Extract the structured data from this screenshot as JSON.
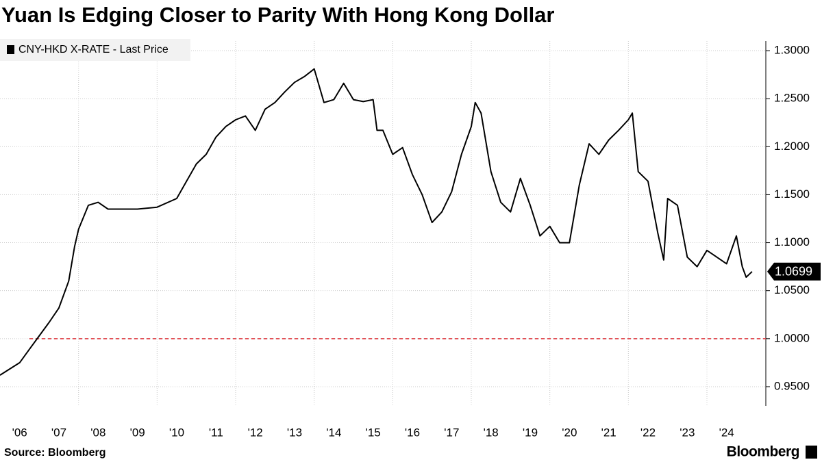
{
  "chart_data": {
    "type": "line",
    "title": "Yuan Is Edging Closer to Parity With Hong Kong Dollar",
    "source": "Source: Bloomberg",
    "brand": "Bloomberg",
    "legend_position": "top-left",
    "grid": true,
    "reference_line": {
      "value": 1.0,
      "color": "#e0383e"
    },
    "x": [
      2006.0,
      2006.5,
      2006.75,
      2007.0,
      2007.25,
      2007.5,
      2007.75,
      2007.9,
      2008.0,
      2008.25,
      2008.5,
      2008.75,
      2009.0,
      2009.5,
      2010.0,
      2010.5,
      2010.75,
      2011.0,
      2011.25,
      2011.5,
      2011.75,
      2012.0,
      2012.25,
      2012.5,
      2012.75,
      2013.0,
      2013.25,
      2013.5,
      2013.75,
      2014.0,
      2014.25,
      2014.5,
      2014.75,
      2015.0,
      2015.25,
      2015.5,
      2015.6,
      2015.75,
      2016.0,
      2016.25,
      2016.5,
      2016.75,
      2017.0,
      2017.25,
      2017.5,
      2017.75,
      2018.0,
      2018.1,
      2018.25,
      2018.5,
      2018.75,
      2019.0,
      2019.25,
      2019.5,
      2019.75,
      2020.0,
      2020.25,
      2020.5,
      2020.75,
      2021.0,
      2021.25,
      2021.5,
      2021.75,
      2022.0,
      2022.1,
      2022.25,
      2022.5,
      2022.75,
      2022.9,
      2023.0,
      2023.25,
      2023.5,
      2023.75,
      2024.0,
      2024.25,
      2024.5,
      2024.75,
      2024.9,
      2025.0,
      2025.15
    ],
    "series": [
      {
        "name": "CNY-HKD X-RATE - Last Price",
        "color": "#000000",
        "values": [
          0.962,
          0.975,
          0.989,
          1.003,
          1.017,
          1.032,
          1.06,
          1.096,
          1.114,
          1.139,
          1.142,
          1.135,
          1.135,
          1.135,
          1.137,
          1.146,
          1.164,
          1.182,
          1.192,
          1.21,
          1.221,
          1.228,
          1.232,
          1.217,
          1.239,
          1.246,
          1.257,
          1.267,
          1.273,
          1.281,
          1.246,
          1.249,
          1.266,
          1.249,
          1.247,
          1.249,
          1.217,
          1.217,
          1.192,
          1.199,
          1.171,
          1.15,
          1.121,
          1.132,
          1.153,
          1.192,
          1.221,
          1.246,
          1.235,
          1.174,
          1.142,
          1.132,
          1.167,
          1.139,
          1.107,
          1.117,
          1.1,
          1.1,
          1.16,
          1.203,
          1.192,
          1.207,
          1.217,
          1.228,
          1.235,
          1.174,
          1.164,
          1.11,
          1.082,
          1.146,
          1.139,
          1.085,
          1.075,
          1.092,
          1.085,
          1.078,
          1.107,
          1.075,
          1.064,
          1.0699
        ]
      }
    ],
    "xlim": [
      2006,
      2025.5
    ],
    "xticks": [
      {
        "value": 2006,
        "label": "'06"
      },
      {
        "value": 2007,
        "label": "'07"
      },
      {
        "value": 2008,
        "label": "'08"
      },
      {
        "value": 2009,
        "label": "'09"
      },
      {
        "value": 2010,
        "label": "'10"
      },
      {
        "value": 2011,
        "label": "'11"
      },
      {
        "value": 2012,
        "label": "'12"
      },
      {
        "value": 2013,
        "label": "'13"
      },
      {
        "value": 2014,
        "label": "'14"
      },
      {
        "value": 2015,
        "label": "'15"
      },
      {
        "value": 2016,
        "label": "'16"
      },
      {
        "value": 2017,
        "label": "'17"
      },
      {
        "value": 2018,
        "label": "'18"
      },
      {
        "value": 2019,
        "label": "'19"
      },
      {
        "value": 2020,
        "label": "'20"
      },
      {
        "value": 2021,
        "label": "'21"
      },
      {
        "value": 2022,
        "label": "'22"
      },
      {
        "value": 2023,
        "label": "'23"
      },
      {
        "value": 2024,
        "label": "'24"
      }
    ],
    "ylim": [
      0.93,
      1.31
    ],
    "yticks": [
      {
        "value": 0.95,
        "label": "0.9500"
      },
      {
        "value": 1.0,
        "label": "1.0000"
      },
      {
        "value": 1.05,
        "label": "1.0500"
      },
      {
        "value": 1.1,
        "label": "1.1000"
      },
      {
        "value": 1.15,
        "label": "1.1500"
      },
      {
        "value": 1.2,
        "label": "1.2000"
      },
      {
        "value": 1.25,
        "label": "1.2500"
      },
      {
        "value": 1.3,
        "label": "1.3000"
      }
    ]
  }
}
